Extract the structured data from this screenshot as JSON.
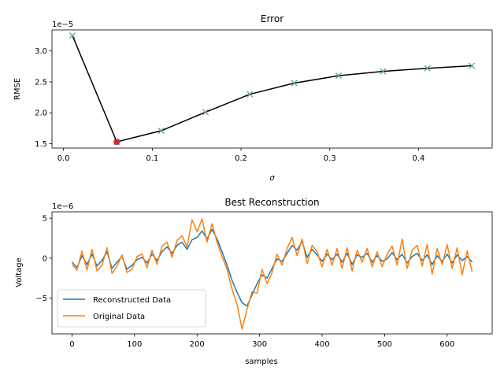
{
  "colors": {
    "line": "#000000",
    "marker": "#5f9ea0",
    "best": "#d62728",
    "reconstructed": "#1f77b4",
    "original": "#ff7f0e"
  },
  "chart_data": [
    {
      "type": "line",
      "title": "Error",
      "xlabel": "σ",
      "ylabel": "RMSE",
      "offset_text": "1e−5",
      "x": [
        0.01,
        0.06,
        0.11,
        0.16,
        0.21,
        0.26,
        0.31,
        0.36,
        0.41,
        0.46
      ],
      "y": [
        3.25,
        1.53,
        1.71,
        2.01,
        2.3,
        2.48,
        2.6,
        2.67,
        2.72,
        2.76
      ],
      "best_point": {
        "x": 0.06,
        "y": 1.53
      },
      "xlim": [
        -0.013,
        0.483
      ],
      "ylim": [
        1.43,
        3.34
      ],
      "xticks": [
        0.0,
        0.1,
        0.2,
        0.3,
        0.4
      ],
      "xtick_labels": [
        "0.0",
        "0.1",
        "0.2",
        "0.3",
        "0.4"
      ],
      "yticks": [
        1.5,
        2.0,
        2.5,
        3.0
      ],
      "ytick_labels": [
        "1.5",
        "2.0",
        "2.5",
        "3.0"
      ],
      "grid": false
    },
    {
      "type": "line",
      "title": "Best Reconstruction",
      "xlabel": "samples",
      "ylabel": "Voltage",
      "offset_text": "1e−6",
      "xlim": [
        -32,
        672
      ],
      "ylim": [
        -9.5,
        5.8
      ],
      "xticks": [
        0,
        100,
        200,
        300,
        400,
        500,
        600
      ],
      "xtick_labels": [
        "0",
        "100",
        "200",
        "300",
        "400",
        "500",
        "600"
      ],
      "yticks": [
        -5,
        0,
        5
      ],
      "ytick_labels": [
        "−5",
        "0",
        "5"
      ],
      "legend": "lower-left",
      "grid": false,
      "series": [
        {
          "name": "Reconstructed Data",
          "x_start": 0,
          "x_step": 8,
          "values": [
            -0.5,
            -1.2,
            0.3,
            -0.8,
            0.5,
            -1.0,
            -0.3,
            0.8,
            -1.3,
            -0.5,
            0.2,
            -1.4,
            -0.9,
            -0.2,
            0.1,
            -0.6,
            0.5,
            -0.3,
            0.8,
            1.4,
            0.6,
            1.6,
            2.0,
            1.1,
            2.3,
            2.6,
            3.4,
            2.4,
            3.6,
            2.4,
            0.8,
            -0.9,
            -2.8,
            -4.3,
            -5.6,
            -6.0,
            -4.6,
            -3.2,
            -2.1,
            -2.5,
            -1.3,
            -0.1,
            -0.4,
            0.6,
            1.6,
            1.0,
            2.1,
            0.1,
            1.1,
            0.4,
            -0.4,
            0.5,
            -0.2,
            0.5,
            -0.5,
            0.6,
            -0.8,
            0.4,
            0.1,
            0.6,
            -0.5,
            0.3,
            -0.4,
            -0.1,
            0.7,
            -0.2,
            0.5,
            -0.6,
            0.2,
            0.6,
            -0.3,
            0.4,
            -0.8,
            0.3,
            -0.4,
            0.5,
            -0.6,
            0.4,
            -0.3,
            0.2,
            -0.5
          ]
        },
        {
          "name": "Original Data",
          "x_start": 0,
          "x_step": 8,
          "values": [
            -0.8,
            -1.5,
            0.9,
            -1.5,
            1.1,
            -1.6,
            -0.9,
            1.3,
            -1.9,
            -1.0,
            0.4,
            -1.8,
            -1.4,
            0.2,
            0.5,
            -1.2,
            1.0,
            -0.8,
            1.5,
            2.0,
            0.1,
            2.2,
            2.8,
            1.4,
            4.8,
            3.3,
            4.9,
            2.0,
            4.3,
            2.0,
            0.2,
            -1.4,
            -3.9,
            -5.8,
            -8.9,
            -6.4,
            -4.2,
            -4.4,
            -1.4,
            -3.2,
            -1.8,
            0.5,
            -0.9,
            1.2,
            2.6,
            0.3,
            2.4,
            -0.7,
            1.6,
            0.8,
            -1.1,
            1.1,
            -0.9,
            1.2,
            -1.3,
            1.3,
            -1.6,
            1.0,
            -0.5,
            1.2,
            -1.1,
            0.8,
            -1.1,
            0.5,
            1.5,
            -0.9,
            2.4,
            -1.3,
            1.0,
            1.6,
            -1.0,
            1.7,
            -2.0,
            1.2,
            -0.8,
            1.7,
            -1.3,
            1.3,
            -2.1,
            0.9,
            -1.7
          ]
        }
      ]
    }
  ]
}
